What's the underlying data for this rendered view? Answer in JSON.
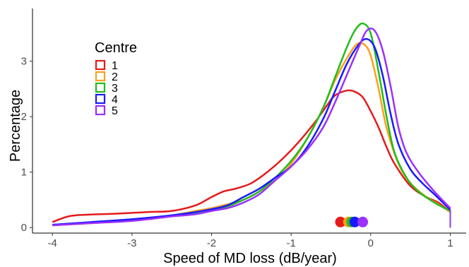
{
  "chart_data": {
    "type": "line",
    "title": "",
    "xlabel": "Speed of MD loss (dB/year)",
    "ylabel": "Percentage",
    "xlim": [
      -4.25,
      1.2
    ],
    "ylim": [
      -0.1,
      3.95
    ],
    "x_ticks": [
      -4,
      -3,
      -2,
      -1,
      0,
      1
    ],
    "x_tick_labels": [
      "-4",
      "-3",
      "-2",
      "-1",
      "0",
      "1"
    ],
    "y_ticks": [
      0,
      1,
      2,
      3
    ],
    "y_tick_labels": [
      "0",
      "1",
      "2",
      "3"
    ],
    "grid": false,
    "legend": {
      "title": "Centre",
      "position": "top-left"
    },
    "series": [
      {
        "name": "1",
        "color": "#e41a1c",
        "points": [
          [
            -4,
            0.1
          ],
          [
            -3.8,
            0.2
          ],
          [
            -3.6,
            0.23
          ],
          [
            -3.2,
            0.25
          ],
          [
            -2.8,
            0.28
          ],
          [
            -2.5,
            0.3
          ],
          [
            -2.2,
            0.4
          ],
          [
            -2,
            0.55
          ],
          [
            -1.85,
            0.65
          ],
          [
            -1.7,
            0.7
          ],
          [
            -1.5,
            0.8
          ],
          [
            -1.3,
            1.0
          ],
          [
            -1.1,
            1.25
          ],
          [
            -0.9,
            1.55
          ],
          [
            -0.7,
            1.9
          ],
          [
            -0.55,
            2.2
          ],
          [
            -0.45,
            2.38
          ],
          [
            -0.3,
            2.47
          ],
          [
            -0.2,
            2.45
          ],
          [
            -0.1,
            2.35
          ],
          [
            0,
            2.1
          ],
          [
            0.1,
            1.8
          ],
          [
            0.2,
            1.45
          ],
          [
            0.3,
            1.15
          ],
          [
            0.5,
            0.75
          ],
          [
            0.7,
            0.55
          ],
          [
            0.85,
            0.45
          ],
          [
            1,
            0.28
          ]
        ],
        "mean": -0.38
      },
      {
        "name": "2",
        "color": "#ff9f1c",
        "points": [
          [
            -4,
            0.04
          ],
          [
            -3.5,
            0.08
          ],
          [
            -3,
            0.13
          ],
          [
            -2.5,
            0.22
          ],
          [
            -2.2,
            0.3
          ],
          [
            -2,
            0.35
          ],
          [
            -1.8,
            0.42
          ],
          [
            -1.6,
            0.5
          ],
          [
            -1.4,
            0.65
          ],
          [
            -1.2,
            0.85
          ],
          [
            -1,
            1.15
          ],
          [
            -0.8,
            1.6
          ],
          [
            -0.6,
            2.15
          ],
          [
            -0.45,
            2.65
          ],
          [
            -0.3,
            3.05
          ],
          [
            -0.18,
            3.3
          ],
          [
            -0.08,
            3.3
          ],
          [
            0,
            3.1
          ],
          [
            0.1,
            2.5
          ],
          [
            0.2,
            1.8
          ],
          [
            0.35,
            1.15
          ],
          [
            0.5,
            0.8
          ],
          [
            0.7,
            0.55
          ],
          [
            0.85,
            0.42
          ],
          [
            1,
            0.28
          ]
        ],
        "mean": -0.28
      },
      {
        "name": "3",
        "color": "#1fbe1a",
        "points": [
          [
            -4,
            0.05
          ],
          [
            -3.5,
            0.09
          ],
          [
            -3,
            0.13
          ],
          [
            -2.5,
            0.22
          ],
          [
            -2.2,
            0.25
          ],
          [
            -2,
            0.3
          ],
          [
            -1.8,
            0.38
          ],
          [
            -1.6,
            0.5
          ],
          [
            -1.4,
            0.65
          ],
          [
            -1.2,
            0.9
          ],
          [
            -1,
            1.2
          ],
          [
            -0.8,
            1.6
          ],
          [
            -0.6,
            2.15
          ],
          [
            -0.45,
            2.7
          ],
          [
            -0.3,
            3.25
          ],
          [
            -0.2,
            3.55
          ],
          [
            -0.1,
            3.68
          ],
          [
            0,
            3.5
          ],
          [
            0.1,
            2.8
          ],
          [
            0.2,
            2.0
          ],
          [
            0.3,
            1.35
          ],
          [
            0.45,
            0.9
          ],
          [
            0.6,
            0.65
          ],
          [
            0.8,
            0.45
          ],
          [
            1,
            0.3
          ]
        ],
        "mean": -0.24
      },
      {
        "name": "4",
        "color": "#1a1aff",
        "points": [
          [
            -4,
            0.05
          ],
          [
            -3.5,
            0.1
          ],
          [
            -3,
            0.15
          ],
          [
            -2.5,
            0.22
          ],
          [
            -2.2,
            0.28
          ],
          [
            -2,
            0.33
          ],
          [
            -1.8,
            0.4
          ],
          [
            -1.6,
            0.55
          ],
          [
            -1.4,
            0.7
          ],
          [
            -1.2,
            0.9
          ],
          [
            -1,
            1.1
          ],
          [
            -0.8,
            1.45
          ],
          [
            -0.6,
            1.95
          ],
          [
            -0.45,
            2.45
          ],
          [
            -0.3,
            2.95
          ],
          [
            -0.15,
            3.3
          ],
          [
            -0.05,
            3.4
          ],
          [
            0.05,
            3.25
          ],
          [
            0.15,
            2.75
          ],
          [
            0.25,
            2.05
          ],
          [
            0.35,
            1.5
          ],
          [
            0.5,
            1.05
          ],
          [
            0.65,
            0.8
          ],
          [
            0.8,
            0.6
          ],
          [
            1,
            0.32
          ]
        ],
        "mean": -0.2
      },
      {
        "name": "5",
        "color": "#9b30ff",
        "points": [
          [
            -4,
            0.04
          ],
          [
            -3.5,
            0.08
          ],
          [
            -3,
            0.12
          ],
          [
            -2.5,
            0.2
          ],
          [
            -2.2,
            0.24
          ],
          [
            -2,
            0.3
          ],
          [
            -1.8,
            0.35
          ],
          [
            -1.6,
            0.45
          ],
          [
            -1.4,
            0.6
          ],
          [
            -1.2,
            0.85
          ],
          [
            -1,
            1.1
          ],
          [
            -0.8,
            1.4
          ],
          [
            -0.6,
            1.8
          ],
          [
            -0.45,
            2.25
          ],
          [
            -0.3,
            2.75
          ],
          [
            -0.15,
            3.25
          ],
          [
            -0.05,
            3.55
          ],
          [
            0.05,
            3.55
          ],
          [
            0.15,
            3.2
          ],
          [
            0.25,
            2.55
          ],
          [
            0.35,
            1.8
          ],
          [
            0.45,
            1.35
          ],
          [
            0.6,
            1.0
          ],
          [
            0.8,
            0.65
          ],
          [
            1,
            0.35
          ]
        ],
        "mean": -0.1
      }
    ]
  }
}
